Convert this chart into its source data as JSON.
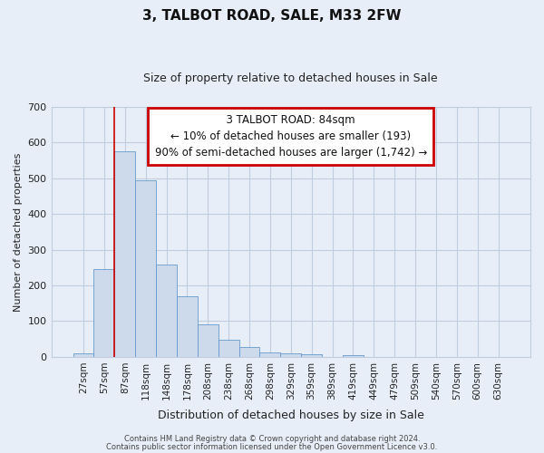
{
  "title": "3, TALBOT ROAD, SALE, M33 2FW",
  "subtitle": "Size of property relative to detached houses in Sale",
  "xlabel": "Distribution of detached houses by size in Sale",
  "ylabel": "Number of detached properties",
  "bin_labels": [
    "27sqm",
    "57sqm",
    "87sqm",
    "118sqm",
    "148sqm",
    "178sqm",
    "208sqm",
    "238sqm",
    "268sqm",
    "298sqm",
    "329sqm",
    "359sqm",
    "389sqm",
    "419sqm",
    "449sqm",
    "479sqm",
    "509sqm",
    "540sqm",
    "570sqm",
    "600sqm",
    "630sqm"
  ],
  "bar_heights": [
    10,
    245,
    575,
    493,
    258,
    170,
    92,
    48,
    27,
    12,
    10,
    7,
    0,
    5,
    0,
    0,
    0,
    0,
    0,
    0,
    0
  ],
  "bar_color": "#cddaec",
  "bar_edge_color": "#6699cc",
  "vline_color": "#cc0000",
  "vline_position": 1.5,
  "annotation_title": "3 TALBOT ROAD: 84sqm",
  "annotation_line2": "← 10% of detached houses are smaller (193)",
  "annotation_line3": "90% of semi-detached houses are larger (1,742) →",
  "annotation_box_edge_color": "#cc0000",
  "ylim": [
    0,
    700
  ],
  "yticks": [
    0,
    100,
    200,
    300,
    400,
    500,
    600,
    700
  ],
  "footer1": "Contains HM Land Registry data © Crown copyright and database right 2024.",
  "footer2": "Contains public sector information licensed under the Open Government Licence v3.0.",
  "bg_color": "#e8eef8",
  "plot_bg_color": "#e8eef8",
  "grid_color": "#c0cce0",
  "title_fontsize": 11,
  "subtitle_fontsize": 9,
  "xlabel_fontsize": 9,
  "ylabel_fontsize": 8,
  "annotation_fontsize": 8.5,
  "tick_fontsize": 7.5
}
